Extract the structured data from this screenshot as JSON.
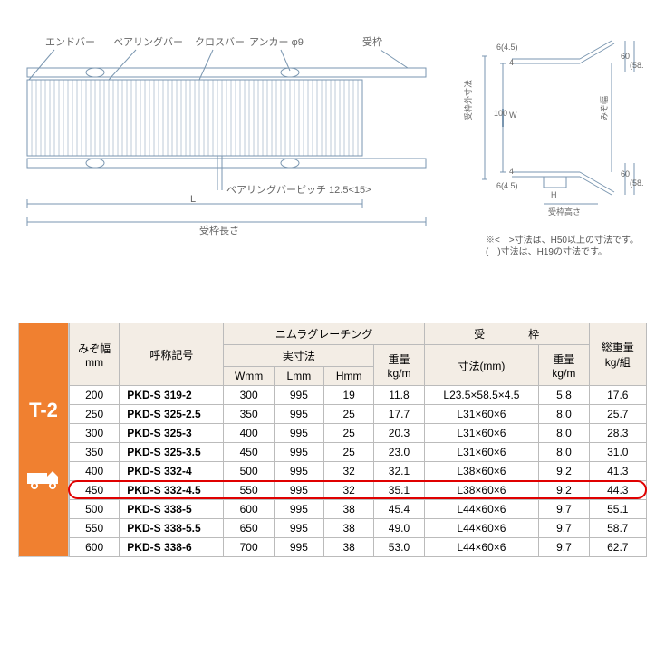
{
  "diagram": {
    "labels": {
      "endbar": "エンドバー",
      "bearingbar": "ベアリングバー",
      "crossbar": "クロスバー",
      "anchor": "アンカー φ9",
      "uketsubo": "受枠",
      "bearing_pitch": "ベアリングバーピッチ 12.5<15>",
      "L": "L",
      "uketsubo_length": "受枠長さ",
      "uketsubo_outer": "受枠外寸法",
      "mizo_width": "みぞ幅",
      "W": "W",
      "H": "H",
      "uketsubo_height": "受枠高さ",
      "d465": "6(4.5)",
      "d100": "100",
      "d60": "60",
      "d585": "(58.5)",
      "d4": "4"
    },
    "note1": "※<　>寸法は、H50以上の寸法です。",
    "note2": "(　)寸法は、H19の寸法です。",
    "colors": {
      "line": "#7a96b0",
      "text": "#666666"
    }
  },
  "table": {
    "side_label": "T-2",
    "headers": {
      "mizo": "みぞ幅\nmm",
      "model": "呼称記号",
      "grating": "ニムラグレーチング",
      "actual": "実寸法",
      "W": "Wmm",
      "L": "Lmm",
      "H": "Hmm",
      "weight": "重量\nkg/m",
      "frame": "受　　　　枠",
      "size": "寸法(mm)",
      "frame_weight": "重量\nkg/m",
      "total": "総重量\nkg/組"
    },
    "rows": [
      {
        "mizo": "200",
        "model": "PKD-S 319-2",
        "w": "300",
        "l": "995",
        "h": "19",
        "wt": "11.8",
        "fsize": "L23.5×58.5×4.5",
        "fwt": "5.8",
        "total": "17.6"
      },
      {
        "mizo": "250",
        "model": "PKD-S 325-2.5",
        "w": "350",
        "l": "995",
        "h": "25",
        "wt": "17.7",
        "fsize": "L31×60×6",
        "fwt": "8.0",
        "total": "25.7"
      },
      {
        "mizo": "300",
        "model": "PKD-S 325-3",
        "w": "400",
        "l": "995",
        "h": "25",
        "wt": "20.3",
        "fsize": "L31×60×6",
        "fwt": "8.0",
        "total": "28.3"
      },
      {
        "mizo": "350",
        "model": "PKD-S 325-3.5",
        "w": "450",
        "l": "995",
        "h": "25",
        "wt": "23.0",
        "fsize": "L31×60×6",
        "fwt": "8.0",
        "total": "31.0"
      },
      {
        "mizo": "400",
        "model": "PKD-S 332-4",
        "w": "500",
        "l": "995",
        "h": "32",
        "wt": "32.1",
        "fsize": "L38×60×6",
        "fwt": "9.2",
        "total": "41.3"
      },
      {
        "mizo": "450",
        "model": "PKD-S 332-4.5",
        "w": "550",
        "l": "995",
        "h": "32",
        "wt": "35.1",
        "fsize": "L38×60×6",
        "fwt": "9.2",
        "total": "44.3",
        "highlight": true
      },
      {
        "mizo": "500",
        "model": "PKD-S 338-5",
        "w": "600",
        "l": "995",
        "h": "38",
        "wt": "45.4",
        "fsize": "L44×60×6",
        "fwt": "9.7",
        "total": "55.1"
      },
      {
        "mizo": "550",
        "model": "PKD-S 338-5.5",
        "w": "650",
        "l": "995",
        "h": "38",
        "wt": "49.0",
        "fsize": "L44×60×6",
        "fwt": "9.7",
        "total": "58.7"
      },
      {
        "mizo": "600",
        "model": "PKD-S 338-6",
        "w": "700",
        "l": "995",
        "h": "38",
        "wt": "53.0",
        "fsize": "L44×60×6",
        "fwt": "9.7",
        "total": "62.7"
      }
    ],
    "header_bg": "#f3ede5",
    "side_bg": "#f08030",
    "highlight_color": "#e00000"
  }
}
